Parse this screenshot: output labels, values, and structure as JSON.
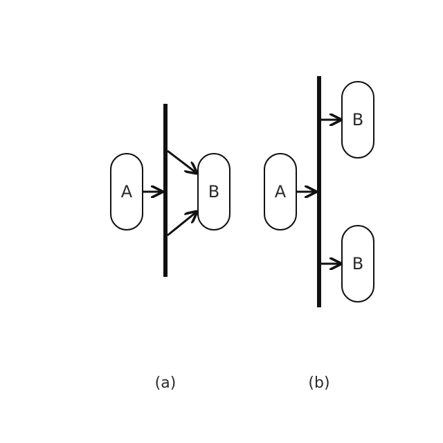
{
  "diagrams": [
    {
      "caption": "(a)",
      "nodes": [
        {
          "label": "A"
        },
        {
          "label": "B"
        }
      ]
    },
    {
      "caption": "(b)",
      "nodes": [
        {
          "label": "A"
        },
        {
          "label": "B"
        },
        {
          "label": "B"
        }
      ]
    }
  ],
  "colors": {
    "stroke": "#111111",
    "text": "#2a2a2a",
    "background": "#ffffff"
  }
}
